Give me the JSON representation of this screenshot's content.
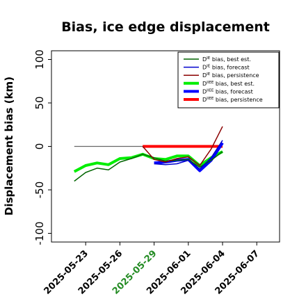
{
  "chart_data": {
    "type": "line",
    "title": "Bias, ice edge displacement",
    "ylabel": "Displacement bias (km)",
    "xlabel": "",
    "ylim": [
      -110,
      110
    ],
    "xlim": [
      "2025-05-20",
      "2025-06-09"
    ],
    "yticks": [
      -100,
      -50,
      0,
      50,
      100
    ],
    "xticks": [
      {
        "label": "2025-05-23",
        "date": "2025-05-23",
        "color": "#000000"
      },
      {
        "label": "2025-05-26",
        "date": "2025-05-26",
        "color": "#000000"
      },
      {
        "label": "2025-05-29",
        "date": "2025-05-29",
        "color": "#228b22"
      },
      {
        "label": "2025-06-01",
        "date": "2025-06-01",
        "color": "#000000"
      },
      {
        "label": "2025-06-04",
        "date": "2025-06-04",
        "color": "#000000"
      },
      {
        "label": "2025-06-07",
        "date": "2025-06-07",
        "color": "#000000"
      }
    ],
    "reference_line": {
      "y": 0,
      "from": "2025-05-22",
      "to": "2025-06-04",
      "color": "#666666"
    },
    "legend_placement": "top-right",
    "grid": false,
    "series": [
      {
        "name": "best est.",
        "style": "thin",
        "color": "#006400",
        "points": [
          [
            "2025-05-22",
            -40
          ],
          [
            "2025-05-23",
            -30
          ],
          [
            "2025-05-24",
            -25
          ],
          [
            "2025-05-25",
            -27
          ],
          [
            "2025-05-26",
            -18
          ],
          [
            "2025-05-27",
            -14
          ],
          [
            "2025-05-28",
            -9
          ],
          [
            "2025-05-29",
            -13
          ],
          [
            "2025-05-30",
            -17
          ],
          [
            "2025-05-31",
            -16
          ],
          [
            "2025-06-01",
            -15
          ],
          [
            "2025-06-02",
            -24
          ],
          [
            "2025-06-03",
            -16
          ],
          [
            "2025-06-04",
            -6
          ]
        ]
      },
      {
        "name": "forecast",
        "style": "thin",
        "color": "#0000cd",
        "points": [
          [
            "2025-05-29",
            -20
          ],
          [
            "2025-05-30",
            -21
          ],
          [
            "2025-05-31",
            -20
          ],
          [
            "2025-06-01",
            -16
          ],
          [
            "2025-06-02",
            -26
          ],
          [
            "2025-06-03",
            -13
          ],
          [
            "2025-06-04",
            7
          ]
        ]
      },
      {
        "name": "persistence",
        "style": "thin",
        "color": "#8b0000",
        "points": [
          [
            "2025-05-28",
            0
          ],
          [
            "2025-05-29",
            -15
          ],
          [
            "2025-05-30",
            -18
          ],
          [
            "2025-05-31",
            -14
          ],
          [
            "2025-06-01",
            -12
          ],
          [
            "2025-06-02",
            -22
          ],
          [
            "2025-06-03",
            -3
          ],
          [
            "2025-06-04",
            23
          ]
        ]
      },
      {
        "name": "best est.",
        "style": "thick",
        "color": "#00ee00",
        "points": [
          [
            "2025-05-22",
            -29
          ],
          [
            "2025-05-23",
            -22
          ],
          [
            "2025-05-24",
            -19
          ],
          [
            "2025-05-25",
            -21
          ],
          [
            "2025-05-26",
            -14
          ],
          [
            "2025-05-27",
            -13
          ],
          [
            "2025-05-28",
            -9
          ],
          [
            "2025-05-29",
            -14
          ],
          [
            "2025-05-30",
            -15
          ],
          [
            "2025-05-31",
            -11
          ],
          [
            "2025-06-01",
            -11
          ],
          [
            "2025-06-02",
            -22
          ],
          [
            "2025-06-03",
            -13
          ],
          [
            "2025-06-04",
            -6
          ]
        ]
      },
      {
        "name": "forecast",
        "style": "thick",
        "color": "#0000ff",
        "points": [
          [
            "2025-05-29",
            -19
          ],
          [
            "2025-05-30",
            -18
          ],
          [
            "2025-05-31",
            -16
          ],
          [
            "2025-06-01",
            -15
          ],
          [
            "2025-06-02",
            -28
          ],
          [
            "2025-06-03",
            -16
          ],
          [
            "2025-06-04",
            4
          ]
        ]
      },
      {
        "name": "persistence",
        "style": "thick",
        "color": "#ff0000",
        "points": [
          [
            "2025-05-28",
            0
          ],
          [
            "2025-06-04",
            0
          ]
        ]
      }
    ]
  }
}
